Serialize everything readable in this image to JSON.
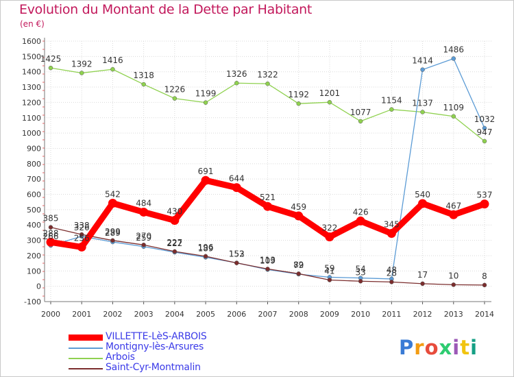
{
  "chart_data": {
    "type": "line",
    "title": "Evolution du Montant de la Dette par Habitant",
    "unit": "(en €)",
    "x": [
      "2000",
      "2001",
      "2002",
      "2003",
      "2004",
      "2005",
      "2006",
      "2007",
      "2008",
      "2009",
      "2010",
      "2011",
      "2012",
      "2013",
      "2014"
    ],
    "ylim": [
      -100,
      1600
    ],
    "yticks": [
      -100,
      0,
      100,
      200,
      300,
      400,
      500,
      600,
      700,
      800,
      900,
      1000,
      1100,
      1200,
      1300,
      1400,
      1500,
      1600
    ],
    "grid": true,
    "legend_position": "bottom-left",
    "series": [
      {
        "name": "VILLETTE-LèS-ARBOIS",
        "color": "#ff0000",
        "values": [
          288,
          256,
          542,
          484,
          430,
          691,
          644,
          521,
          459,
          322,
          426,
          345,
          540,
          467,
          537
        ],
        "labels": [
          "288",
          "256",
          "542",
          "484",
          "430",
          "691",
          "644",
          "521",
          "459",
          "322",
          "426",
          "345",
          "540",
          "467",
          "537"
        ]
      },
      {
        "name": "Montigny-lès-Arsures",
        "color": "#5b9bd5",
        "values": [
          266,
          326,
          289,
          259,
          222,
          189,
          153,
          109,
          79,
          59,
          54,
          48,
          1414,
          1486,
          1032
        ],
        "labels": [
          "266",
          "326",
          "289",
          "259",
          "222",
          "189",
          "153",
          "109",
          "79",
          "59",
          "54",
          "48",
          "1414",
          "1486",
          "1032"
        ]
      },
      {
        "name": "Arbois",
        "color": "#8fd14f",
        "values": [
          1425,
          1392,
          1416,
          1318,
          1226,
          1199,
          1326,
          1322,
          1192,
          1201,
          1077,
          1154,
          1137,
          1109,
          947
        ],
        "labels": [
          "1425",
          "1392",
          "1416",
          "1318",
          "1226",
          "1199",
          "1326",
          "1322",
          "1192",
          "1201",
          "1077",
          "1154",
          "1137",
          "1109",
          "947"
        ]
      },
      {
        "name": "Saint-Cyr-Montmalin",
        "color": "#7b2d2d",
        "values": [
          385,
          338,
          299,
          270,
          227,
          196,
          152,
          113,
          82,
          41,
          33,
          28,
          17,
          10,
          8
        ],
        "labels": [
          "385",
          "338",
          "299",
          "270",
          "227",
          "196",
          "152",
          "113",
          "82",
          "41",
          "33",
          "28",
          "17",
          "10",
          "8"
        ]
      }
    ]
  },
  "logo": {
    "letters": [
      "P",
      "r",
      "o",
      "x",
      "i",
      "t",
      "i"
    ],
    "colors": [
      "#3a7bd5",
      "#f39c12",
      "#e74c3c",
      "#2ecc71",
      "#9b59b6",
      "#f1c40f",
      "#16a085"
    ]
  }
}
